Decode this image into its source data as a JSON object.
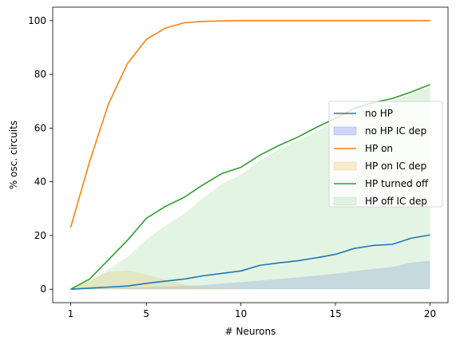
{
  "chart_data": {
    "type": "line",
    "xlabel": "# Neurons",
    "ylabel": "% osc. circuits",
    "xlim": [
      0.05,
      20.95
    ],
    "ylim": [
      -5,
      105
    ],
    "xticks": [
      1,
      5,
      10,
      15,
      20
    ],
    "yticks": [
      0,
      20,
      40,
      60,
      80,
      100
    ],
    "grid": false,
    "legend_position": "center-right",
    "x": [
      1,
      2,
      3,
      4,
      5,
      6,
      7,
      8,
      9,
      10,
      11,
      12,
      13,
      14,
      15,
      16,
      17,
      18,
      19,
      20
    ],
    "series": [
      {
        "name": "no HP",
        "kind": "line",
        "color": "#1f77b4",
        "values": [
          0,
          0.4,
          0.8,
          1.2,
          2.2,
          3.0,
          3.8,
          5.0,
          5.9,
          6.8,
          8.9,
          9.8,
          10.6,
          11.7,
          13.0,
          15.2,
          16.3,
          16.7,
          19.0,
          20.2
        ]
      },
      {
        "name": "no HP IC dep",
        "kind": "area",
        "color": "#6f7ff0",
        "values": [
          0,
          0.2,
          0.4,
          0.6,
          0.8,
          1.0,
          1.2,
          1.5,
          2.1,
          2.6,
          3.2,
          3.8,
          4.4,
          5.1,
          5.8,
          6.7,
          7.6,
          8.3,
          9.9,
          10.6
        ]
      },
      {
        "name": "HP on",
        "kind": "line",
        "color": "#ff7f0e",
        "values": [
          23,
          47.5,
          69,
          84,
          93,
          97.2,
          99.2,
          99.7,
          99.9,
          100,
          100,
          100,
          100,
          100,
          100,
          100,
          100,
          100,
          100,
          100
        ]
      },
      {
        "name": "HP on IC dep",
        "kind": "area",
        "color": "#f3c25c",
        "values": [
          0,
          3.5,
          6.5,
          7.0,
          5.5,
          3.5,
          1.8,
          0.8,
          0.3,
          0.1,
          0,
          0,
          0,
          0,
          0,
          0,
          0,
          0,
          0,
          0
        ]
      },
      {
        "name": "HP turned off",
        "kind": "line",
        "color": "#2ca02c",
        "values": [
          0,
          3.8,
          11.0,
          18.2,
          26.4,
          30.8,
          34.2,
          38.9,
          43.1,
          45.4,
          49.9,
          53.5,
          56.6,
          60.3,
          63.6,
          67.3,
          69.5,
          71.0,
          73.4,
          76.2
        ]
      },
      {
        "name": "HP off IC dep",
        "kind": "area",
        "color": "#a3d9a3",
        "values": [
          0,
          3.0,
          7.5,
          12.0,
          18.5,
          23.7,
          28.0,
          34.0,
          39.3,
          42.6,
          47.9,
          52.0,
          55.5,
          58.6,
          62.5,
          66.0,
          68.5,
          70.3,
          72.8,
          75.5
        ]
      }
    ]
  }
}
